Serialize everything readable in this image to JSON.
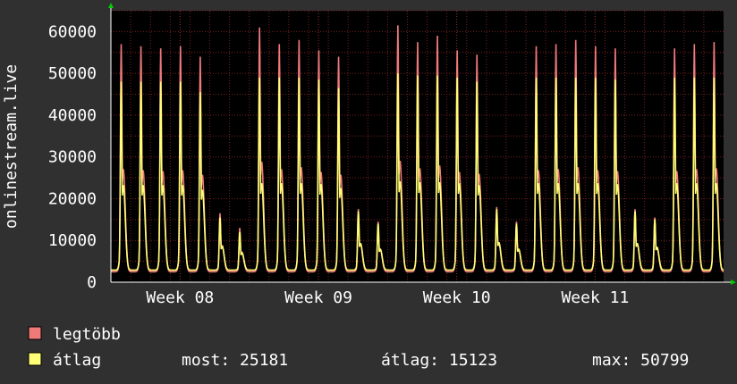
{
  "chart_data": {
    "type": "area",
    "ylabel": "onlinestream.live",
    "ylim": [
      0,
      65000
    ],
    "y_ticks": [
      0,
      10000,
      20000,
      30000,
      40000,
      50000,
      60000
    ],
    "y_tick_labels": [
      "0",
      "10000",
      "20000",
      "30000",
      "40000",
      "50000",
      "60000"
    ],
    "x_unit": "day",
    "x_range_days": [
      0,
      31
    ],
    "x_ticks": [
      {
        "label": "Week 08",
        "day": 3.5
      },
      {
        "label": "Week 09",
        "day": 10.5
      },
      {
        "label": "Week 10",
        "day": 17.5
      },
      {
        "label": "Week 11",
        "day": 24.5
      }
    ],
    "grid": true,
    "series": [
      {
        "name": "legtöbb",
        "color": "#f07a7a",
        "daily_peaks": [
          57000,
          56500,
          56000,
          56500,
          54000,
          16500,
          13000,
          61000,
          57000,
          58000,
          55500,
          54000,
          17500,
          14500,
          61500,
          57500,
          59000,
          55500,
          54500,
          18000,
          14500,
          56500,
          57000,
          58000,
          56500,
          56000,
          17500,
          15500,
          56000,
          57000,
          57500
        ]
      },
      {
        "name": "átlag",
        "color": "#ffff77",
        "daily_peaks": [
          48000,
          48000,
          48000,
          48000,
          45500,
          15500,
          12000,
          49000,
          49000,
          49000,
          48500,
          46500,
          17000,
          14000,
          50000,
          49500,
          49500,
          49000,
          48000,
          17500,
          14000,
          49000,
          49000,
          49000,
          49000,
          48500,
          17000,
          15000,
          49000,
          49000,
          49000
        ]
      }
    ],
    "legend": {
      "placement": "bottom-left",
      "items": [
        {
          "label": "legtöbb",
          "color": "#f07a7a"
        },
        {
          "label": "átlag",
          "color": "#ffff77"
        }
      ]
    },
    "stats": {
      "current": "most: 25181",
      "average": "átlag: 15123",
      "max": "max: 50799"
    },
    "colors": {
      "background": "#303030",
      "plot_background": "#000000",
      "grid": "#7a2020",
      "axis": "#ffffff",
      "arrow": "#00cc00"
    }
  }
}
